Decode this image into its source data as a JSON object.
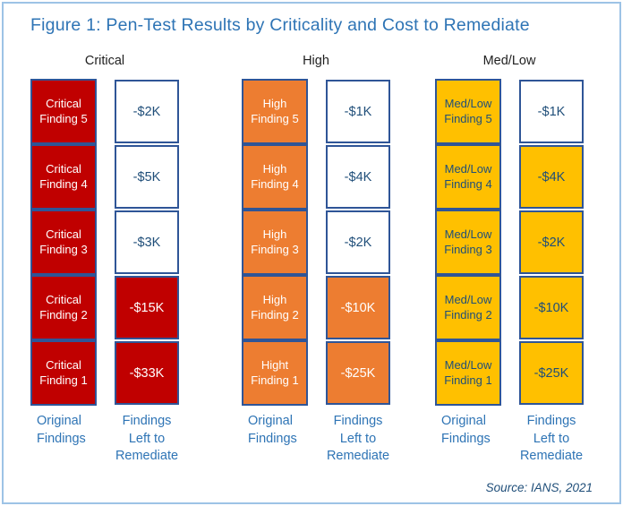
{
  "figure": {
    "title": "Figure 1: Pen-Test Results by Criticality and Cost to Remediate",
    "source": "Source: IANS, 2021"
  },
  "labels": {
    "original_column": "Original Findings",
    "remediate_column": "Findings Left to Remediate"
  },
  "colors": {
    "critical_fill": "#C00000",
    "high_fill": "#ED7D31",
    "medlow_fill": "#FFC000",
    "box_border": "#2F5597",
    "title_text": "#2E74B5",
    "value_text": "#1F4E79",
    "frame_border": "#9DC3E6"
  },
  "groups": [
    {
      "name": "Critical",
      "findings": [
        "Critical Finding 5",
        "Critical Finding 4",
        "Critical Finding 3",
        "Critical Finding 2",
        "Critical Finding 1"
      ],
      "remediate": [
        "-$2K",
        "-$5K",
        "-$3K",
        "-$15K",
        "-$33K"
      ],
      "remediate_filled": [
        false,
        false,
        false,
        true,
        true
      ]
    },
    {
      "name": "High",
      "findings": [
        "High Finding 5",
        "High Finding 4",
        "High Finding 3",
        "High Finding 2",
        "Hight Finding 1"
      ],
      "remediate": [
        "-$1K",
        "-$4K",
        "-$2K",
        "-$10K",
        "-$25K"
      ],
      "remediate_filled": [
        false,
        false,
        false,
        true,
        true
      ]
    },
    {
      "name": "Med/Low",
      "findings": [
        "Med/Low Finding 5",
        "Med/Low Finding 4",
        "Med/Low Finding 3",
        "Med/Low Finding 2",
        "Med/Low Finding 1"
      ],
      "remediate": [
        "-$1K",
        "-$4K",
        "-$2K",
        "-$10K",
        "-$25K"
      ],
      "remediate_filled": [
        false,
        true,
        true,
        true,
        true
      ]
    }
  ],
  "chart_data": {
    "type": "table",
    "title": "Figure 1: Pen-Test Results by Criticality and Cost to Remediate",
    "columns": [
      "Original Findings",
      "Findings Left to Remediate"
    ],
    "series": [
      {
        "name": "Critical",
        "categories": [
          "Critical Finding 5",
          "Critical Finding 4",
          "Critical Finding 3",
          "Critical Finding 2",
          "Critical Finding 1"
        ],
        "cost_left_to_remediate_usd_k": [
          -2,
          -5,
          -3,
          -15,
          -33
        ],
        "value_labels": [
          "-$2K",
          "-$5K",
          "-$3K",
          "-$15K",
          "-$33K"
        ],
        "highlighted_values": [
          "-$15K",
          "-$33K"
        ]
      },
      {
        "name": "High",
        "categories": [
          "High Finding 5",
          "High Finding 4",
          "High Finding 3",
          "High Finding 2",
          "Hight Finding 1"
        ],
        "cost_left_to_remediate_usd_k": [
          -1,
          -4,
          -2,
          -10,
          -25
        ],
        "value_labels": [
          "-$1K",
          "-$4K",
          "-$2K",
          "-$10K",
          "-$25K"
        ],
        "highlighted_values": [
          "-$10K",
          "-$25K"
        ]
      },
      {
        "name": "Med/Low",
        "categories": [
          "Med/Low Finding 5",
          "Med/Low Finding 4",
          "Med/Low Finding 3",
          "Med/Low Finding 2",
          "Med/Low Finding 1"
        ],
        "cost_left_to_remediate_usd_k": [
          -1,
          -4,
          -2,
          -10,
          -25
        ],
        "value_labels": [
          "-$1K",
          "-$4K",
          "-$2K",
          "-$10K",
          "-$25K"
        ],
        "highlighted_values": [
          "-$4K",
          "-$2K",
          "-$10K",
          "-$25K"
        ]
      }
    ],
    "legend_position": "none",
    "source": "Source: IANS, 2021"
  }
}
